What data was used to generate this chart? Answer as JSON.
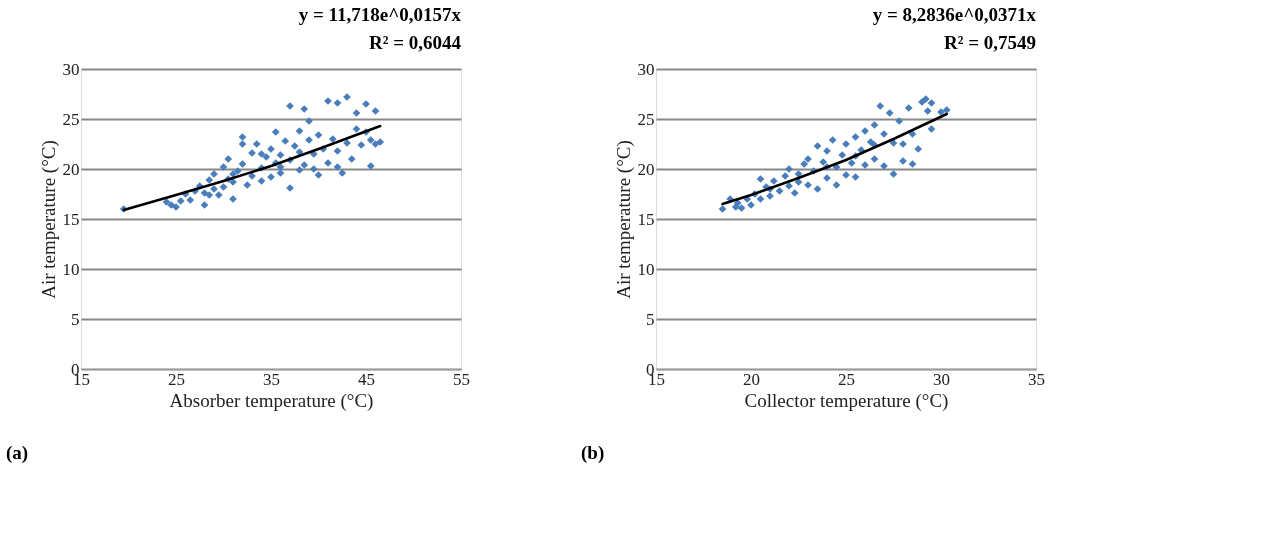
{
  "chart_data": [
    {
      "type": "scatter",
      "xlabel": "Absorber temperature (°C)",
      "ylabel": "Air temperature (°C)",
      "xlim": [
        15,
        55
      ],
      "xticks": [
        15,
        25,
        35,
        45,
        55
      ],
      "ylim": [
        0,
        30
      ],
      "yticks": [
        0,
        5,
        10,
        15,
        20,
        25,
        30
      ],
      "grid": "y",
      "marker": "diamond",
      "annotations": [
        "y = 11,718e^0,0157x",
        "R² = 0,6044",
        "(a)"
      ],
      "series": [
        {
          "color": "#4a7ebb",
          "x": [
            19.5,
            24,
            24.5,
            25,
            25.5,
            26,
            26.5,
            27,
            27.5,
            28,
            28,
            28.5,
            29,
            29,
            29.5,
            30,
            30,
            30.5,
            30.5,
            31,
            31,
            31.5,
            32,
            32,
            32,
            32.5,
            33,
            33,
            33.5,
            34,
            34,
            34.5,
            35,
            35,
            35.5,
            35.5,
            36,
            36,
            36.5,
            37,
            37,
            37,
            37.5,
            38,
            38,
            38.5,
            38.5,
            39,
            39,
            39.5,
            39.5,
            40,
            40,
            40.5,
            41,
            41,
            41.5,
            42,
            42,
            42.5,
            43,
            43,
            43.5,
            44,
            44,
            44.5,
            45,
            45,
            45.5,
            45.5,
            46,
            46,
            46.5,
            38,
            36,
            34,
            31,
            28.5,
            42
          ],
          "values": [
            16,
            16.7,
            16.4,
            16.2,
            16.8,
            17.5,
            16.9,
            17.8,
            18.3,
            16.4,
            17.6,
            18.9,
            18,
            19.5,
            17.4,
            18.2,
            20.2,
            19,
            21,
            17,
            18.7,
            19.8,
            23.2,
            22.5,
            20.5,
            18.4,
            19.3,
            21.6,
            22.5,
            18.8,
            20.1,
            21.2,
            19.2,
            22,
            20.6,
            23.7,
            19.6,
            21.4,
            22.8,
            18.1,
            20.9,
            26.3,
            22.3,
            19.9,
            21.7,
            20.4,
            26,
            22.9,
            24.8,
            20,
            21.5,
            23.4,
            19.4,
            22,
            26.8,
            20.6,
            23,
            26.6,
            21.8,
            19.6,
            27.2,
            22.6,
            21,
            24,
            25.6,
            22.4,
            26.5,
            23.7,
            20.3,
            22.9,
            25.8,
            22.5,
            22.7,
            23.8,
            20.2,
            21.5,
            19.5,
            17.4,
            20.2
          ]
        },
        {
          "type": "line",
          "marker": "none",
          "line_style": "solid",
          "color": "#000000",
          "x": [
            19.5,
            25,
            30,
            35,
            40,
            46.5
          ],
          "values": [
            15.9,
            17.4,
            18.8,
            20.3,
            22,
            24.3
          ]
        }
      ]
    },
    {
      "type": "scatter",
      "xlabel": "Collector temperature (°C)",
      "ylabel": "Air  temperature (°C)",
      "xlim": [
        15,
        35
      ],
      "xticks": [
        15,
        20,
        25,
        30,
        35
      ],
      "ylim": [
        0,
        30
      ],
      "yticks": [
        0,
        5,
        10,
        15,
        20,
        25,
        30
      ],
      "grid": "y",
      "marker": "diamond",
      "annotations": [
        "y = 8,2836e^0,0371x",
        "R² = 0,7549",
        "(b)"
      ],
      "series": [
        {
          "color": "#4a7ebb",
          "x": [
            18.5,
            18.9,
            19.2,
            19.3,
            19.5,
            19.8,
            20,
            20.2,
            20.5,
            20.5,
            20.8,
            21,
            21.2,
            21.5,
            21.8,
            22,
            22,
            22.3,
            22.5,
            22.8,
            23,
            23,
            23.3,
            23.5,
            23.5,
            23.8,
            24,
            24,
            24.3,
            24.5,
            24.5,
            24.8,
            25,
            25,
            25.3,
            25.5,
            25.5,
            25.8,
            26,
            26,
            26.3,
            26.5,
            26.5,
            26.8,
            27,
            27,
            27.3,
            27.5,
            27.5,
            27.8,
            28,
            28,
            28.3,
            28.5,
            28.5,
            28.8,
            29,
            29.2,
            29.3,
            29.5,
            29.5,
            30,
            30.3,
            22.5,
            24,
            25.5,
            21,
            26.5
          ],
          "values": [
            16,
            17,
            16.2,
            16.6,
            16.1,
            17,
            16.4,
            17.5,
            19,
            17,
            18.2,
            17.3,
            18.8,
            17.8,
            19.3,
            18.3,
            20,
            17.6,
            19.5,
            20.5,
            18.4,
            21,
            19.8,
            22.3,
            18,
            20.7,
            19.1,
            21.8,
            22.9,
            20.2,
            18.4,
            21.4,
            19.4,
            22.5,
            20.6,
            23.2,
            19.2,
            21.9,
            23.8,
            20.4,
            22.7,
            21,
            24.4,
            26.3,
            23.5,
            20.3,
            25.6,
            19.5,
            22.6,
            24.8,
            20.8,
            22.5,
            26.1,
            23.5,
            20.5,
            22,
            26.7,
            27,
            25.8,
            26.6,
            24,
            25.7,
            25.9,
            18.7,
            20.2,
            21.3,
            18,
            22.4
          ]
        },
        {
          "type": "line",
          "marker": "none",
          "line_style": "solid",
          "color": "#000000",
          "x": [
            18.5,
            20,
            22.5,
            25,
            27.5,
            30.3
          ],
          "values": [
            16.5,
            17.4,
            19.1,
            20.9,
            23,
            25.5
          ]
        }
      ]
    }
  ]
}
